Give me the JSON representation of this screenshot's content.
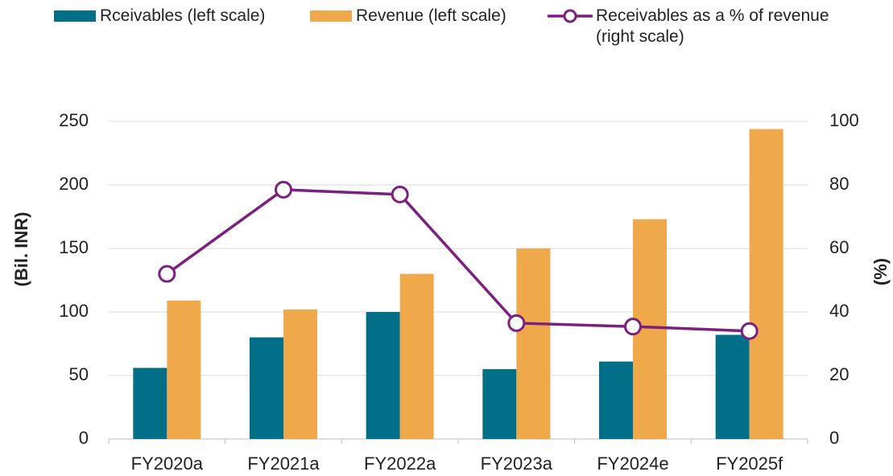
{
  "chart_data": {
    "type": "bar",
    "categories": [
      "FY2020a",
      "FY2021a",
      "FY2022a",
      "FY2023a",
      "FY2024e",
      "FY2025f"
    ],
    "series": [
      {
        "name": "Rceivables (left scale)",
        "type": "bar",
        "color": "#006f87",
        "values": [
          56,
          80,
          100,
          55,
          61,
          82
        ]
      },
      {
        "name": "Revenue (left scale)",
        "type": "bar",
        "color": "#f0a94a",
        "values": [
          109,
          102,
          130,
          150,
          173,
          244
        ]
      },
      {
        "name": "Receivables as a % of revenue (right scale)",
        "type": "line",
        "axis": "y2",
        "color": "#7b1f80",
        "values": [
          52,
          78.5,
          77,
          36.5,
          35.4,
          34
        ]
      }
    ],
    "y_label": "(Bil. INR)",
    "y2_label": "(%)",
    "ylim": [
      0,
      250
    ],
    "yticks": [
      0,
      50,
      100,
      150,
      200,
      250
    ],
    "y2lim": [
      0,
      100
    ],
    "y2ticks": [
      0,
      20,
      40,
      60,
      80,
      100
    ],
    "grid": true,
    "legend": "top"
  }
}
